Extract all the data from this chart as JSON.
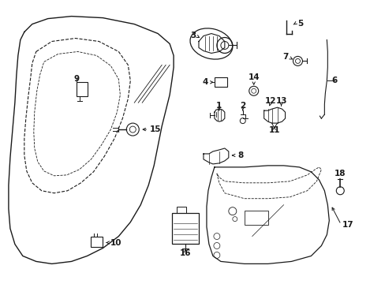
{
  "bg_color": "#ffffff",
  "line_color": "#1a1a1a",
  "fig_width": 4.89,
  "fig_height": 3.6,
  "dpi": 100,
  "label_fs": 7.5,
  "lw": 0.7
}
